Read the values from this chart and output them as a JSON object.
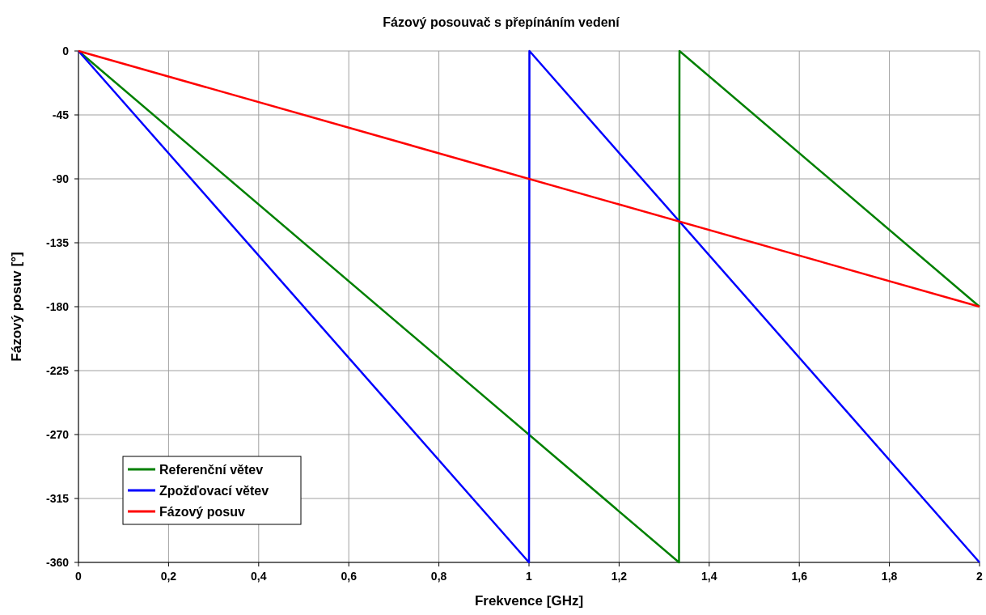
{
  "chart_data": {
    "type": "line",
    "title": "Fázový posouvač s přepínáním vedení",
    "xlabel": "Frekvence [GHz]",
    "ylabel": "Fázový posuv [°]",
    "xlim": [
      0,
      2
    ],
    "xticks": [
      0,
      {
        "value": 0.2,
        "label": "0,2"
      },
      {
        "value": 0.4,
        "label": "0,4"
      },
      {
        "value": 0.6,
        "label": "0,6"
      },
      {
        "value": 0.8,
        "label": "0,8"
      },
      1,
      {
        "value": 1.2,
        "label": "1,2"
      },
      {
        "value": 1.4,
        "label": "1,4"
      },
      {
        "value": 1.6,
        "label": "1,6"
      },
      {
        "value": 1.8,
        "label": "1,8"
      },
      2
    ],
    "ylim": [
      -360,
      0
    ],
    "yticks": [
      -360,
      -315,
      -270,
      -225,
      -180,
      -135,
      -90,
      -45,
      0
    ],
    "grid": true,
    "legend": "bottom left",
    "marker": "none",
    "line_style": "solid",
    "series": [
      {
        "name": "Referenční větev",
        "color": "#008000",
        "x": [
          0,
          1.333,
          1.334,
          2
        ],
        "values": [
          0,
          -360,
          0,
          -180
        ]
      },
      {
        "name": "Zpožďovací větev",
        "color": "#0000ff",
        "x": [
          0,
          1,
          1.001,
          2
        ],
        "values": [
          0,
          -360,
          0,
          -360
        ]
      },
      {
        "name": "Fázový posuv",
        "color": "#ff0000",
        "x": [
          0,
          2
        ],
        "values": [
          0,
          -180
        ]
      }
    ]
  }
}
